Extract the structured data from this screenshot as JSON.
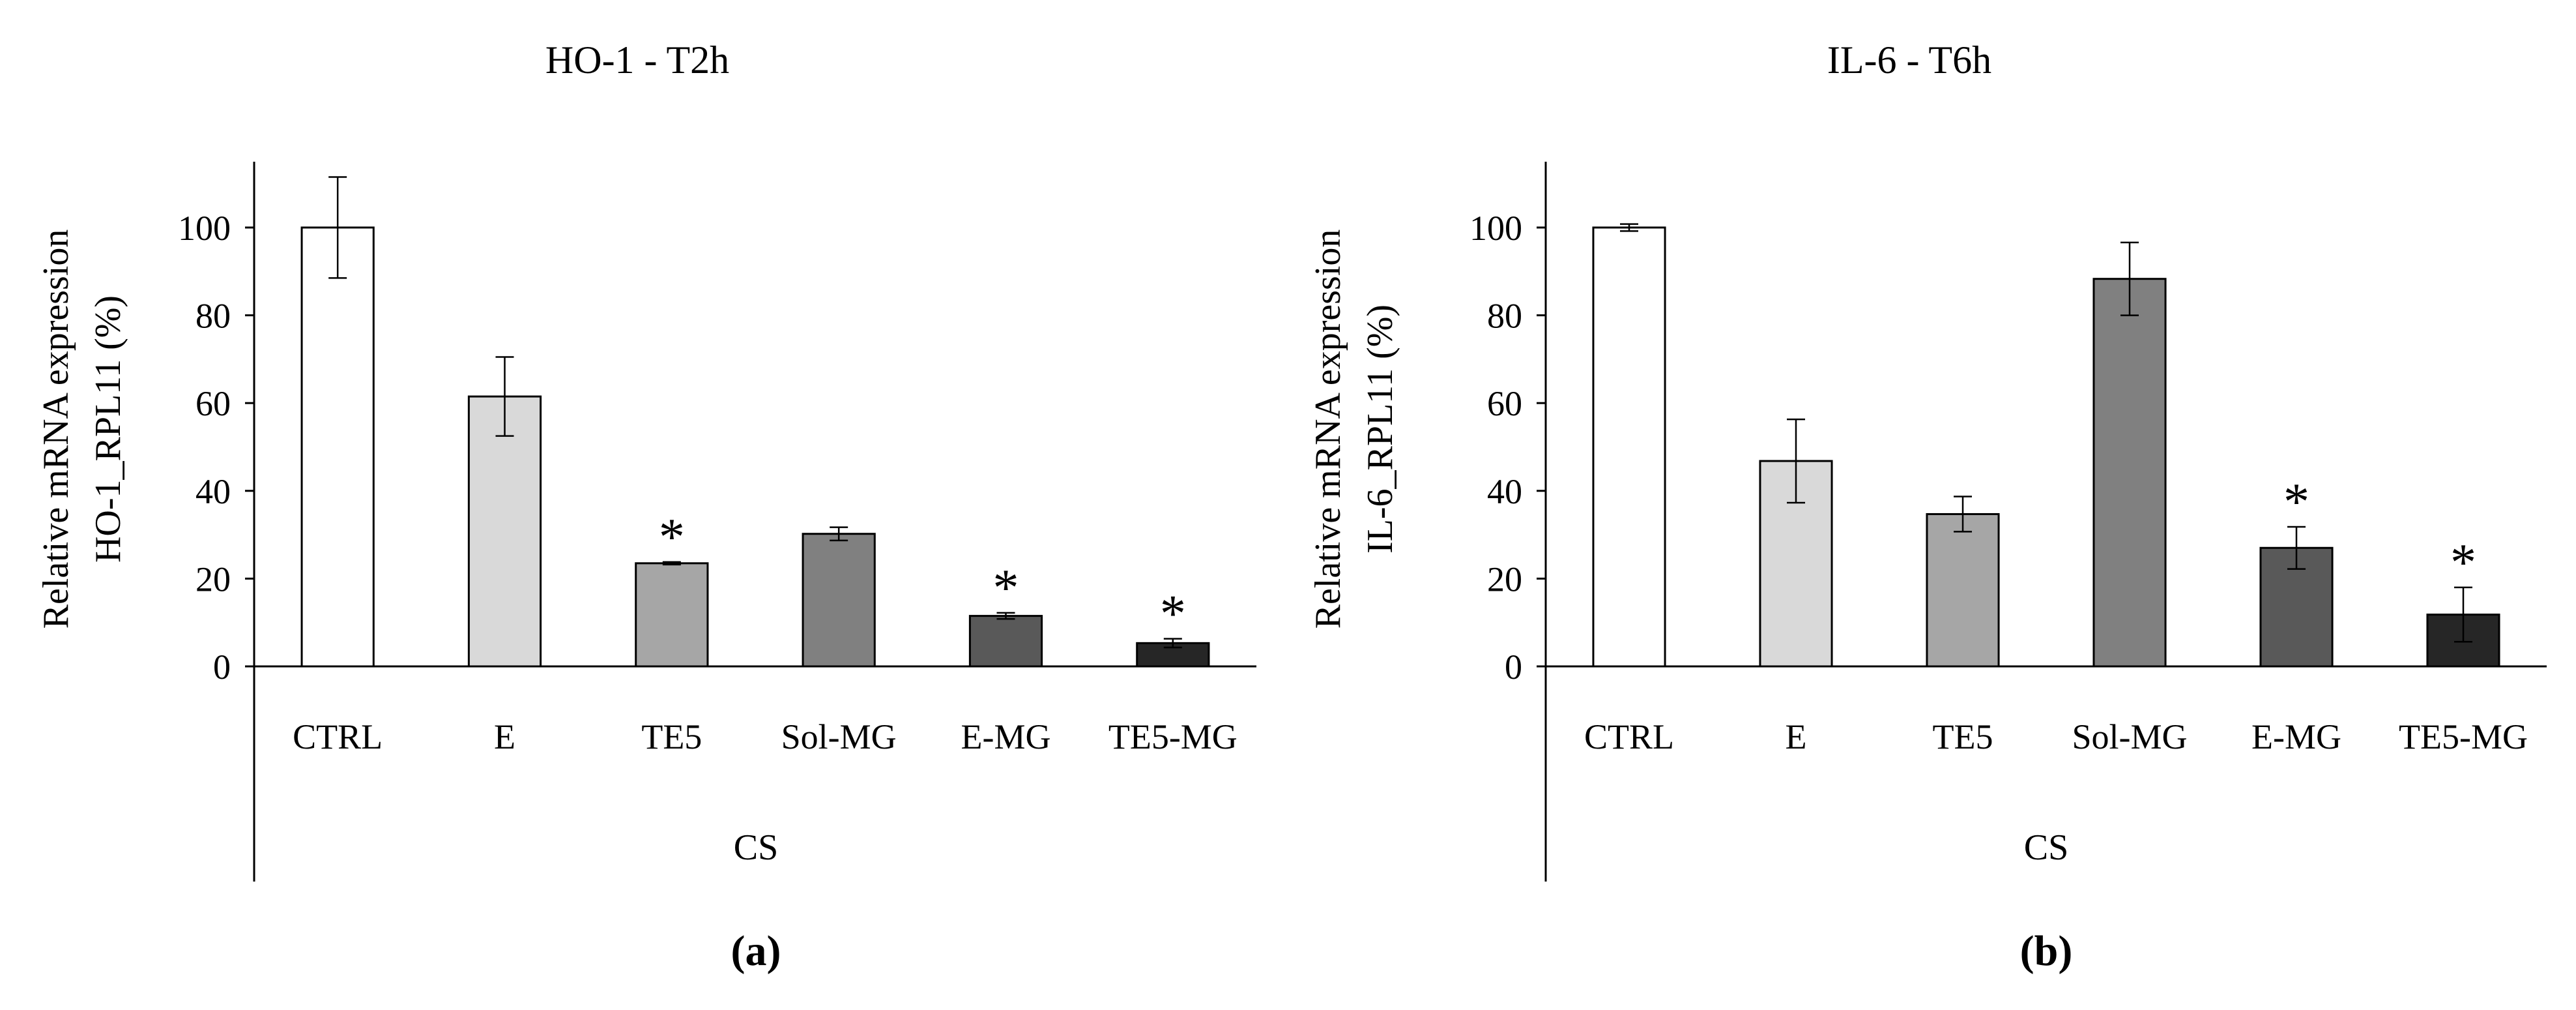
{
  "chart_data": [
    {
      "type": "bar",
      "panel_label": "(a)",
      "title": "HO-1 - T2h",
      "ylabel_line1": "Relative mRNA expression",
      "ylabel_line2": "HO-1_RPL11 (%)",
      "group_label": "CS",
      "categories": [
        "CTRL",
        "E",
        "TE5",
        "Sol-MG",
        "E-MG",
        "TE5-MG"
      ],
      "values": [
        100,
        61.5,
        23.5,
        30.2,
        11.5,
        5.3
      ],
      "errors": [
        11.5,
        9.0,
        0.3,
        1.5,
        0.7,
        1.0
      ],
      "significance": [
        "",
        "",
        "*",
        "",
        "*",
        "*"
      ],
      "colors": [
        "#ffffff",
        "#d9d9d9",
        "#a6a6a6",
        "#808080",
        "#595959",
        "#262626"
      ],
      "yticks": [
        0,
        20,
        40,
        60,
        80,
        100
      ],
      "ylim": [
        0,
        115
      ]
    },
    {
      "type": "bar",
      "panel_label": "(b)",
      "title": "IL-6 - T6h",
      "ylabel_line1": "Relative mRNA expression",
      "ylabel_line2": "IL-6_RPL11 (%)",
      "group_label": "CS",
      "categories": [
        "CTRL",
        "E",
        "TE5",
        "Sol-MG",
        "E-MG",
        "TE5-MG"
      ],
      "values": [
        100,
        46.8,
        34.7,
        88.3,
        27.0,
        11.8
      ],
      "errors": [
        0.8,
        9.5,
        4.0,
        8.3,
        4.8,
        6.2
      ],
      "significance": [
        "",
        "",
        "",
        "",
        "*",
        "*"
      ],
      "colors": [
        "#ffffff",
        "#d9d9d9",
        "#a6a6a6",
        "#808080",
        "#595959",
        "#262626"
      ],
      "yticks": [
        0,
        20,
        40,
        60,
        80,
        100
      ],
      "ylim": [
        0,
        115
      ]
    }
  ]
}
